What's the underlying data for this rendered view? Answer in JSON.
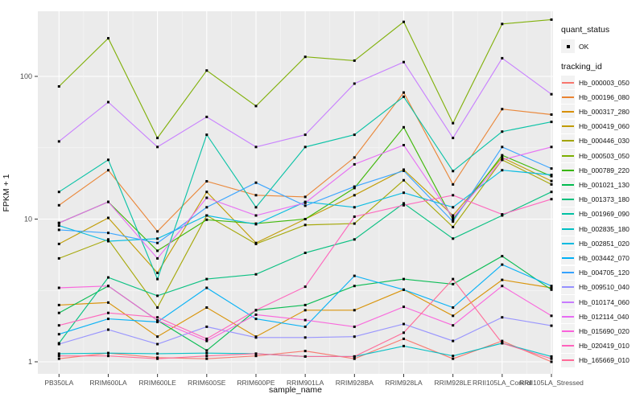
{
  "figure": {
    "y_axis_label": "FPKM + 1",
    "x_axis_label": "sample_name",
    "background": "#FFFFFF",
    "panel_background": "#EBEBEB",
    "grid_major_color": "#FFFFFF",
    "grid_minor_color": "#F5F5F5",
    "tick_text_color": "#4D4D4D",
    "tick_mark_color": "#333333",
    "marker_color": "#000000",
    "y_tick_labels": [
      "1",
      "10",
      "100"
    ]
  },
  "legend_quant": {
    "title": "quant_status",
    "items": [
      {
        "label": "OK",
        "symbol": "black-point"
      }
    ]
  },
  "legend_tracking": {
    "title": "tracking_id"
  },
  "chart_data": {
    "type": "line",
    "title": "",
    "xlabel": "sample_name",
    "ylabel": "FPKM + 1",
    "log_y": true,
    "y_tick_values": [
      1,
      10,
      100
    ],
    "ylim": [
      0.82,
      290
    ],
    "grid": true,
    "legend_position": "right",
    "marker": "small-black-square",
    "categories": [
      "PB350LA",
      "RRIM600LA",
      "RRIM600LE",
      "RRIM600SE",
      "RRIM600PE",
      "RRIM901LA",
      "RRIM928BA",
      "RRIM928LA",
      "RRIM928LE",
      "RRII105LA_Control",
      "RRII105LA_Stressed"
    ],
    "series": [
      {
        "name": "Hb_000003_050",
        "color": "#F8766D",
        "values": [
          1.05,
          1.15,
          1.07,
          1.05,
          1.1,
          1.19,
          1.05,
          1.45,
          1.05,
          1.4,
          1.0
        ]
      },
      {
        "name": "Hb_000196_080",
        "color": "#EA8331",
        "values": [
          12.5,
          22,
          8.2,
          18.4,
          14.7,
          14.3,
          27,
          77,
          17.5,
          59,
          54
        ]
      },
      {
        "name": "Hb_000317_280",
        "color": "#D89000",
        "values": [
          2.5,
          2.6,
          1.5,
          2.4,
          1.5,
          2.3,
          2.3,
          3.2,
          2.1,
          3.75,
          3.3
        ]
      },
      {
        "name": "Hb_000419_060",
        "color": "#C09B00",
        "values": [
          6.7,
          10.2,
          4.2,
          15.5,
          6.8,
          10.0,
          14.7,
          22.2,
          10.6,
          27,
          18.5
        ]
      },
      {
        "name": "Hb_000446_030",
        "color": "#A3A500",
        "values": [
          5.3,
          7.2,
          2.4,
          10.6,
          6.7,
          9.1,
          9.3,
          18.7,
          8.8,
          26,
          17.5
        ]
      },
      {
        "name": "Hb_000503_050",
        "color": "#7CAE00",
        "values": [
          85,
          185,
          37,
          110,
          62,
          137,
          129,
          241,
          47,
          233,
          250
        ]
      },
      {
        "name": "Hb_000789_220",
        "color": "#39B600",
        "values": [
          9.4,
          13.2,
          6.0,
          9.9,
          9.3,
          10.0,
          16.5,
          44,
          9.9,
          28,
          20
        ]
      },
      {
        "name": "Hb_001021_130",
        "color": "#00BB4E",
        "values": [
          2.2,
          3.4,
          1.95,
          1.2,
          2.3,
          2.5,
          3.4,
          3.8,
          3.5,
          5.5,
          3.2
        ]
      },
      {
        "name": "Hb_001373_180",
        "color": "#00BF7D",
        "values": [
          1.35,
          3.9,
          2.9,
          3.8,
          4.1,
          5.8,
          7.2,
          12.9,
          7.3,
          10.6,
          15.5
        ]
      },
      {
        "name": "Hb_001969_090",
        "color": "#00C1A3",
        "values": [
          15.5,
          26,
          3.8,
          39,
          12.1,
          32,
          39,
          72,
          21.7,
          41,
          48
        ]
      },
      {
        "name": "Hb_002835_180",
        "color": "#00BFC4",
        "values": [
          1.14,
          1.15,
          1.14,
          1.15,
          1.14,
          1.09,
          1.09,
          1.29,
          1.1,
          1.35,
          1.09
        ]
      },
      {
        "name": "Hb_002851_020",
        "color": "#00BAE0",
        "values": [
          9.0,
          7.0,
          7.3,
          10.6,
          9.2,
          13.2,
          12.1,
          15.3,
          12.1,
          22,
          20.4
        ]
      },
      {
        "name": "Hb_003442_070",
        "color": "#00B0F6",
        "values": [
          1.56,
          2.0,
          1.9,
          3.3,
          2.0,
          1.76,
          4.0,
          3.2,
          2.4,
          4.8,
          3.4
        ]
      },
      {
        "name": "Hb_004705_120",
        "color": "#35A2FF",
        "values": [
          8.4,
          8.0,
          6.8,
          12.1,
          18,
          12.4,
          16.9,
          21.8,
          9.6,
          32,
          22.6
        ]
      },
      {
        "name": "Hb_009510_040",
        "color": "#9590FF",
        "values": [
          1.33,
          1.68,
          1.33,
          1.76,
          1.48,
          1.48,
          1.5,
          1.84,
          1.4,
          2.05,
          1.79
        ]
      },
      {
        "name": "Hb_010174_060",
        "color": "#C77CFF",
        "values": [
          35,
          66,
          32,
          52,
          32,
          39,
          89,
          126,
          37,
          134,
          75
        ]
      },
      {
        "name": "Hb_012114_040",
        "color": "#E76BF3",
        "values": [
          9.4,
          13.2,
          5.3,
          14.1,
          10.6,
          13.0,
          24.2,
          33,
          10.2,
          26,
          32
        ]
      },
      {
        "name": "Hb_015690_020",
        "color": "#FA62DB",
        "values": [
          3.3,
          3.4,
          1.95,
          1.4,
          2.14,
          1.96,
          1.76,
          2.43,
          1.8,
          3.4,
          2.1
        ]
      },
      {
        "name": "Hb_020419_010",
        "color": "#FF62BC",
        "values": [
          1.8,
          2.2,
          2.05,
          1.45,
          2.3,
          3.36,
          10.4,
          12.5,
          14.7,
          10.8,
          13.8
        ]
      },
      {
        "name": "Hb_165669_010",
        "color": "#FF6A98",
        "values": [
          1.1,
          1.1,
          1.05,
          1.1,
          1.14,
          1.09,
          1.09,
          1.6,
          3.8,
          1.35,
          1.05
        ]
      }
    ]
  }
}
